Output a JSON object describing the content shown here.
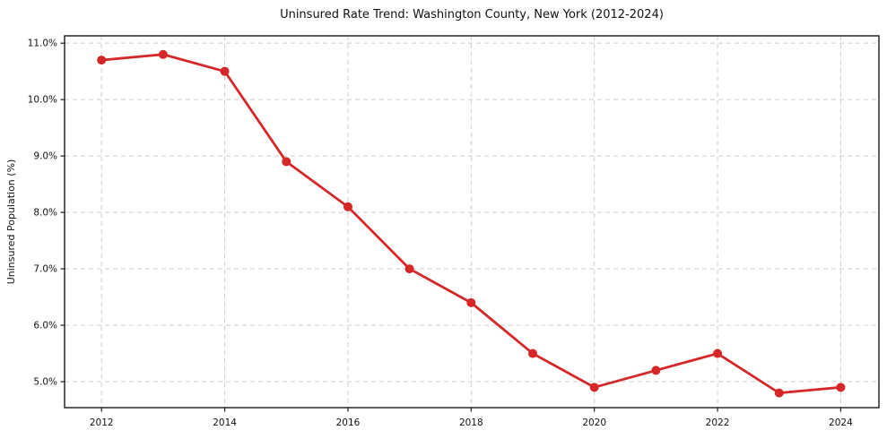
{
  "chart_data": {
    "type": "line",
    "title": "Uninsured Rate Trend: Washington County, New York (2012-2024)",
    "xlabel": "",
    "ylabel": "Uninsured Population (%)",
    "x": [
      2012,
      2013,
      2014,
      2015,
      2016,
      2017,
      2018,
      2019,
      2020,
      2021,
      2022,
      2023,
      2024
    ],
    "values": [
      10.7,
      10.8,
      10.5,
      8.9,
      8.1,
      7.0,
      6.4,
      5.5,
      4.9,
      5.2,
      5.5,
      4.8,
      4.9
    ],
    "xticks": {
      "values": [
        2012,
        2014,
        2016,
        2018,
        2020,
        2022,
        2024
      ],
      "labels": [
        "2012",
        "2014",
        "2016",
        "2018",
        "2020",
        "2022",
        "2024"
      ]
    },
    "yticks": {
      "values": [
        5,
        6,
        7,
        8,
        9,
        10,
        11
      ],
      "labels": [
        "5.0%",
        "6.0%",
        "7.0%",
        "8.0%",
        "9.0%",
        "10.0%",
        "11.0%"
      ]
    },
    "xlim": [
      2011.4,
      2024.62
    ],
    "ylim": [
      4.54,
      11.13
    ],
    "grid": true,
    "grid_style": "dashed",
    "legend": "none",
    "marker": "circle",
    "colors": {
      "line": "#d62728",
      "marker": "#d62728",
      "grid": "#cccccc",
      "spine": "#1a1a1a",
      "tick": "#1a1a1a",
      "text": "#111111",
      "background": "#ffffff"
    }
  }
}
